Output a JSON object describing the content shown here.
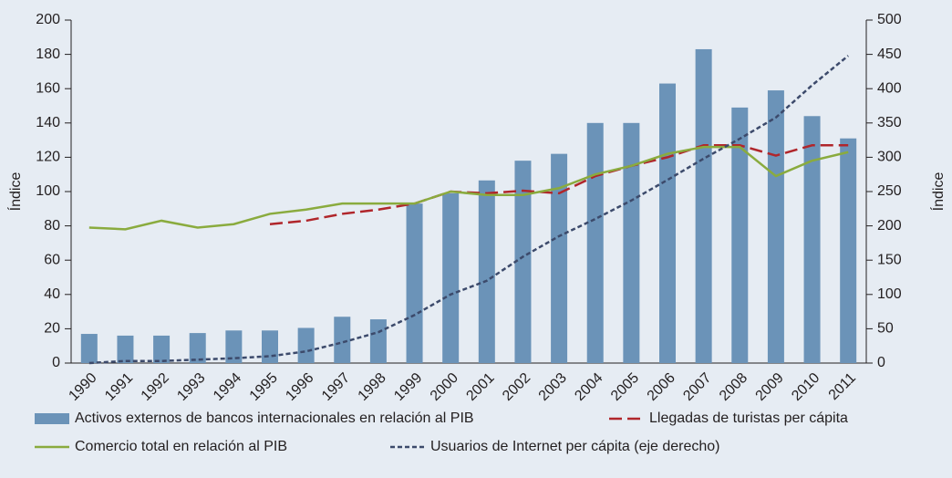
{
  "chart_data": {
    "type": "bar-line",
    "ylabel": "Índice",
    "y2label": "Índice",
    "categories": [
      "1990",
      "1991",
      "1992",
      "1993",
      "1994",
      "1995",
      "1996",
      "1997",
      "1998",
      "1999",
      "2000",
      "2001",
      "2002",
      "2003",
      "2004",
      "2005",
      "2006",
      "2007",
      "2008",
      "2009",
      "2010",
      "2011"
    ],
    "ylim": [
      0,
      200
    ],
    "yticks": [
      0,
      20,
      40,
      60,
      80,
      100,
      120,
      140,
      160,
      180,
      200
    ],
    "y2lim": [
      0,
      500
    ],
    "y2ticks": [
      0,
      50,
      100,
      150,
      200,
      250,
      300,
      350,
      400,
      450,
      500
    ],
    "series": [
      {
        "name": "Activos externos de bancos internacionales en relación al PIB",
        "type": "bar",
        "color": "#6b93b8",
        "values": [
          17,
          16,
          16,
          17.5,
          19,
          19,
          20.5,
          27,
          25.5,
          93,
          99,
          106.5,
          118,
          122,
          140,
          140,
          163,
          183,
          149,
          159,
          144,
          131
        ]
      },
      {
        "name": "Llegadas de turistas per cápita",
        "type": "line",
        "style": "long-dash",
        "color": "#b0262b",
        "values": [
          null,
          null,
          null,
          null,
          null,
          81,
          83,
          87,
          89.5,
          93,
          100,
          99,
          100.5,
          99,
          109,
          115,
          120,
          127,
          127,
          121,
          127,
          127
        ]
      },
      {
        "name": "Comercio total en relación al PIB",
        "type": "line",
        "style": "solid",
        "color": "#8aab3e",
        "values": [
          79,
          78,
          83,
          79,
          81,
          87,
          89.5,
          93,
          93,
          93,
          100,
          98,
          98,
          102,
          110,
          115,
          122,
          126,
          126,
          109,
          118,
          123
        ]
      },
      {
        "name": "Usuarios de Internet per cápita (eje derecho)",
        "type": "line",
        "style": "short-dash",
        "color": "#3c4a6b",
        "axis": "y2",
        "values": [
          0,
          3,
          3,
          5,
          7,
          10,
          17,
          30,
          45,
          70,
          100,
          120,
          155,
          185,
          210,
          237,
          267,
          298,
          327,
          358,
          405,
          448
        ]
      }
    ]
  }
}
